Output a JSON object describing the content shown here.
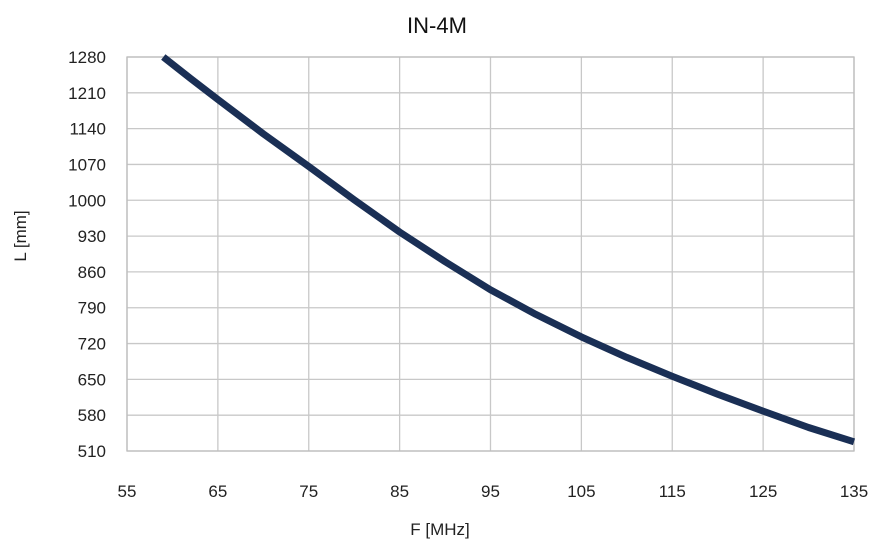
{
  "chart_data": {
    "type": "line",
    "title": "IN-4M",
    "xlabel": "F [MHz]",
    "ylabel": "L [mm]",
    "xlim": [
      55,
      135
    ],
    "ylim": [
      510,
      1280
    ],
    "x_ticks": [
      55,
      65,
      75,
      85,
      95,
      105,
      115,
      125,
      135
    ],
    "y_ticks": [
      510,
      580,
      650,
      720,
      790,
      860,
      930,
      1000,
      1070,
      1140,
      1210,
      1280
    ],
    "grid": true,
    "legend": "none",
    "series": [
      {
        "color": "#1a2f55",
        "x": [
          59,
          62,
          65,
          70,
          75,
          80,
          85,
          90,
          95,
          100,
          105,
          110,
          115,
          120,
          125,
          130,
          135
        ],
        "y": [
          1280,
          1238,
          1197,
          1130,
          1066,
          1001,
          938,
          880,
          825,
          777,
          733,
          693,
          656,
          621,
          588,
          556,
          528
        ]
      }
    ]
  }
}
